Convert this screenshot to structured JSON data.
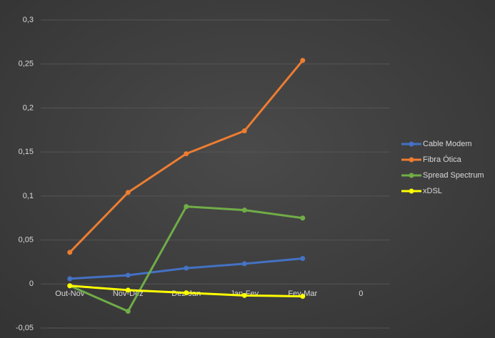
{
  "chart_data": {
    "type": "line",
    "categories": [
      "Out-Nov",
      "Nov-Dez",
      "Dez-Jan",
      "Jan-Fev",
      "Fev-Mar",
      "0"
    ],
    "series": [
      {
        "name": "Cable Modem",
        "color": "#4472c4",
        "values": [
          0.006,
          0.01,
          0.018,
          0.023,
          0.029,
          null
        ]
      },
      {
        "name": "Fibra Ótica",
        "color": "#ed7d31",
        "values": [
          0.036,
          0.104,
          0.148,
          0.174,
          0.254,
          null
        ]
      },
      {
        "name": "Spread Spectrum",
        "color": "#70ad47",
        "values": [
          -0.002,
          -0.031,
          0.088,
          0.084,
          0.075,
          null
        ]
      },
      {
        "name": "xDSL",
        "color": "#ffff00",
        "values": [
          -0.002,
          -0.007,
          -0.01,
          -0.013,
          -0.014,
          null
        ]
      }
    ],
    "ylim": [
      -0.05,
      0.3
    ],
    "yticks": [
      {
        "value": -0.05,
        "label": "-0,05"
      },
      0,
      {
        "value": 0.05,
        "label": "0,05"
      },
      {
        "value": 0.1,
        "label": "0,1"
      },
      {
        "value": 0.15,
        "label": "0,15"
      },
      {
        "value": 0.2,
        "label": "0,2"
      },
      {
        "value": 0.25,
        "label": "0,25"
      },
      {
        "value": 0.3,
        "label": "0,3"
      }
    ],
    "grid": true,
    "legend": "right"
  }
}
